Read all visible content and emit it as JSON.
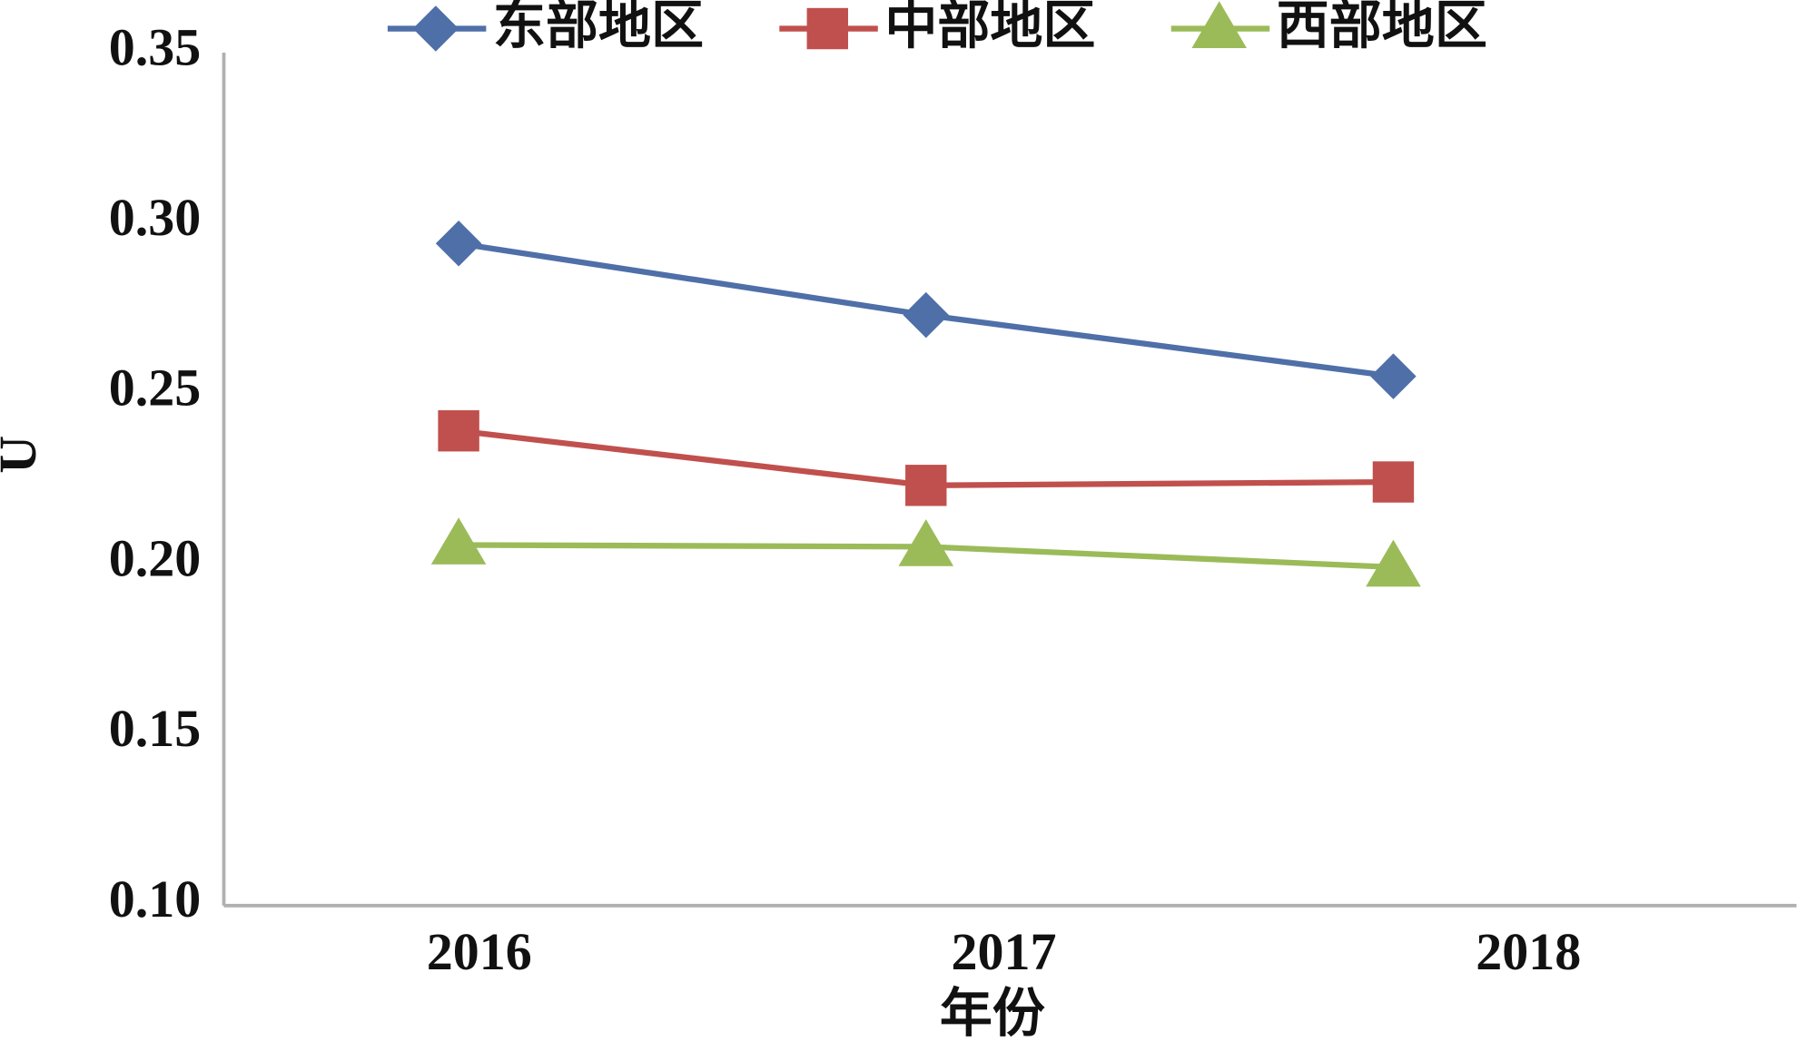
{
  "chart_data": {
    "type": "line",
    "x_label": "年份",
    "y_label": "U",
    "categories": [
      "2016",
      "2017",
      "2018"
    ],
    "series": [
      {
        "name": "东部地区",
        "color": "#4f6fa8",
        "marker": "diamond",
        "values": [
          0.294,
          0.273,
          0.255
        ]
      },
      {
        "name": "中部地区",
        "color": "#c0504d",
        "marker": "square",
        "values": [
          0.239,
          0.223,
          0.224
        ]
      },
      {
        "name": "西部地区",
        "color": "#9bbb59",
        "marker": "triangle",
        "values": [
          0.2055,
          0.205,
          0.199
        ]
      }
    ],
    "ylim": [
      0.1,
      0.35
    ],
    "yticks": [
      {
        "value": 0.1,
        "label": "0.10"
      },
      {
        "value": 0.15,
        "label": "0.15"
      },
      {
        "value": 0.2,
        "label": "0.20"
      },
      {
        "value": 0.25,
        "label": "0.25"
      },
      {
        "value": 0.3,
        "label": "0.30"
      },
      {
        "value": 0.35,
        "label": "0.35"
      }
    ],
    "grid": false,
    "legend": "top"
  }
}
